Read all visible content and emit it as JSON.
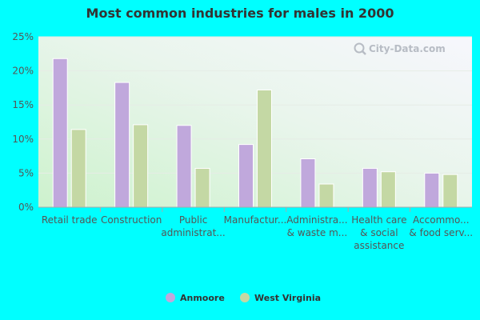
{
  "chart_data": {
    "type": "bar",
    "title": "Most common industries for males in 2000",
    "categories": [
      [
        "Retail trade"
      ],
      [
        "Construction"
      ],
      [
        "Public",
        "administrat..."
      ],
      [
        "Manufactur..."
      ],
      [
        "Administra...",
        "& waste m..."
      ],
      [
        "Health care",
        "& social",
        "assistance"
      ],
      [
        "Accommo...",
        "& food serv..."
      ]
    ],
    "series": [
      {
        "name": "Anmoore",
        "color": "#c0a8dc",
        "values": [
          21.8,
          18.3,
          12.0,
          9.2,
          7.1,
          5.7,
          5.0
        ]
      },
      {
        "name": "West Virginia",
        "color": "#c4d8a4",
        "values": [
          11.4,
          12.1,
          5.7,
          17.2,
          3.4,
          5.2,
          4.8
        ]
      }
    ],
    "ylim": [
      0,
      25
    ],
    "yticks": [
      0,
      5,
      10,
      15,
      20,
      25
    ],
    "ytick_labels": [
      "0%",
      "5%",
      "10%",
      "15%",
      "20%",
      "25%"
    ],
    "xlabel": "",
    "ylabel": "",
    "grid": true,
    "legend_position": "bottom"
  },
  "watermark": {
    "text": "City-Data.com",
    "icon": "magnifier-icon"
  }
}
